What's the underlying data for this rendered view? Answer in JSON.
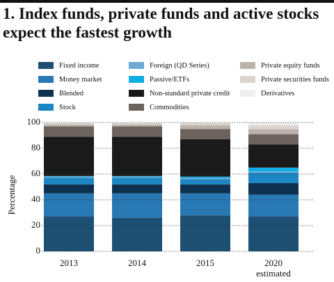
{
  "chart_data": {
    "type": "stacked_bar",
    "title": "1. Index funds, private funds and active stocks expect the fastest growth",
    "y_label": "Percentage",
    "categories": [
      "2013",
      "2014",
      "2015",
      "2020 estimated"
    ],
    "series": [
      {
        "name": "Fixed income",
        "color": "#1d4f72",
        "values": [
          27,
          26,
          28,
          27
        ]
      },
      {
        "name": "Money market",
        "color": "#2878b4",
        "values": [
          18,
          19,
          17,
          17
        ]
      },
      {
        "name": "Blended",
        "color": "#0f3150",
        "values": [
          7,
          7,
          7,
          9
        ]
      },
      {
        "name": "Stock",
        "color": "#1b86c2",
        "values": [
          5,
          5,
          4,
          8
        ]
      },
      {
        "name": "Foreign (QD Series)",
        "color": "#6eaad6",
        "values": [
          1,
          1,
          1,
          1
        ]
      },
      {
        "name": "Passive/ETFs",
        "color": "#10aee3",
        "values": [
          0.5,
          0.5,
          1,
          3
        ]
      },
      {
        "name": "Non-standard private credit",
        "color": "#1a1a1a",
        "values": [
          30.5,
          30.5,
          29,
          18
        ]
      },
      {
        "name": "Commodities",
        "color": "#6c635e",
        "values": [
          8,
          8,
          8,
          8
        ]
      },
      {
        "name": "Private equity funds",
        "color": "#bbb2ac",
        "values": [
          1.5,
          1.5,
          3,
          4
        ]
      },
      {
        "name": "Private securities funds",
        "color": "#dcd5cf",
        "values": [
          1,
          1,
          1.5,
          3
        ]
      },
      {
        "name": "Derivatives",
        "color": "#efefef",
        "values": [
          0.5,
          0.5,
          0.5,
          2
        ]
      }
    ],
    "ylim": [
      0,
      100
    ],
    "yticks": [
      0,
      20,
      40,
      60,
      80,
      100
    ],
    "grid": true
  }
}
